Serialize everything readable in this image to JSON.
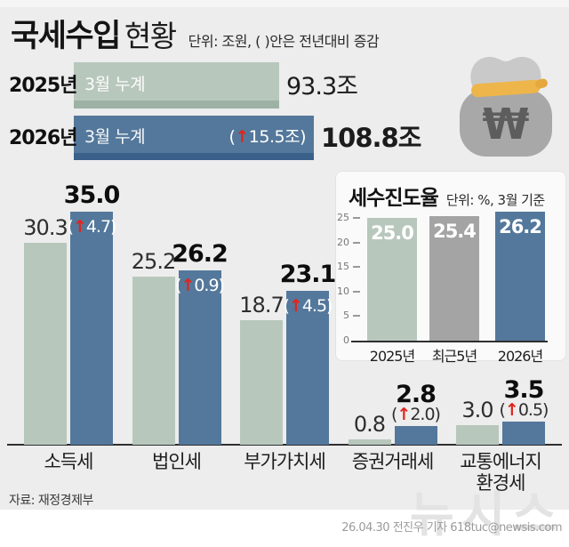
{
  "header": {
    "title_strong": "국세수입",
    "title_light": "현황",
    "unit_note": "단위: 조원, ( )안은 전년대비 증감"
  },
  "summary": {
    "rows": [
      {
        "year": "2025년",
        "bar_label": "3월 누계",
        "delta": "",
        "value": 93.3,
        "value_label": "93.3조",
        "color": "#b8c7bc",
        "edge_color": "#9db2a4"
      },
      {
        "year": "2026년",
        "bar_label": "3월 누계",
        "delta": "(↑15.5조)",
        "value": 108.8,
        "value_label": "108.8조",
        "color": "#54789b",
        "edge_color": "#3a618a"
      }
    ]
  },
  "icons": {
    "money_bag": "money-bag-with-won-symbol"
  },
  "chart_data": [
    {
      "type": "bar",
      "title": "국세수입 현황",
      "unit": "조원",
      "categories": [
        "소득세",
        "법인세",
        "부가가치세",
        "증권거래세",
        "교통에너지\n환경세"
      ],
      "series": [
        {
          "name": "2025년 3월 누계",
          "values": [
            30.3,
            25.2,
            18.7,
            0.8,
            3.0
          ],
          "color": "#b8c7bc"
        },
        {
          "name": "2026년 3월 누계",
          "values": [
            35.0,
            26.2,
            23.1,
            2.8,
            3.5
          ],
          "color": "#54789b"
        }
      ],
      "deltas": [
        "(↑4.7)",
        "(↑0.9)",
        "(↑4.5)",
        "(↑2.0)",
        "(↑0.5)"
      ],
      "ylim": [
        0,
        37
      ],
      "grid": false,
      "legend": "none"
    },
    {
      "type": "bar",
      "title": "세수진도율",
      "unit_note": "단위: %, 3월 기준",
      "categories": [
        "2025년",
        "최근5년",
        "2026년"
      ],
      "values": [
        25.0,
        25.4,
        26.2
      ],
      "colors": [
        "#b8c7bc",
        "#a4a4a4",
        "#54789b"
      ],
      "yticks": [
        0,
        5,
        10,
        15,
        20,
        25
      ],
      "ylim": [
        0,
        26.5
      ],
      "grid": false
    }
  ],
  "source": "자료: 재정경제부",
  "watermark": "뉴시스",
  "credit": "26.04.30 전진우 기자 618tuc@newsis.com",
  "colors": {
    "green": "#b8c7bc",
    "blue": "#54789b",
    "gray": "#a4a4a4",
    "red": "#e0251b",
    "background": "#ededed"
  }
}
